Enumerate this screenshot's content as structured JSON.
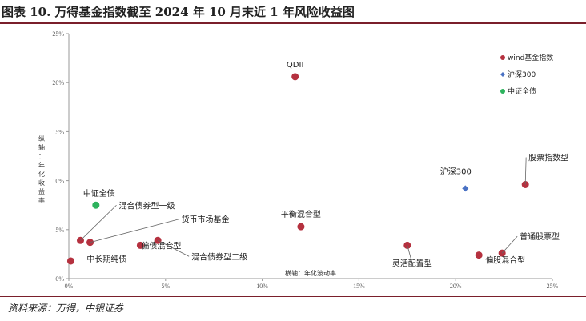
{
  "title": "图表 10. 万得基金指数截至 2024 年 10 月末近 1 年风险收益图",
  "source": "资料来源：万得，中银证券",
  "colors": {
    "wind": "#b5313f",
    "hs300": "#4a72c4",
    "zzqz": "#2db35d",
    "rule": "#7a1f2b"
  },
  "chart_data": {
    "type": "scatter",
    "xlabel": "横轴：年化波动率",
    "ylabel": "纵轴：年化收益率",
    "xlim": [
      0,
      25
    ],
    "ylim": [
      0,
      25
    ],
    "x_ticks": [
      "0%",
      "5%",
      "10%",
      "15%",
      "20%",
      "25%"
    ],
    "y_ticks": [
      "0%",
      "5%",
      "10%",
      "15%",
      "20%",
      "25%"
    ],
    "grid": false,
    "legend_position": "top-right",
    "legend": [
      "wind基金指数",
      "沪深300",
      "中证全债"
    ],
    "points": [
      {
        "label": "QDII",
        "series": "wind",
        "x": 11.7,
        "y": 20.6
      },
      {
        "label": "股票指数型",
        "series": "wind",
        "x": 23.6,
        "y": 9.6
      },
      {
        "label": "平衡混合型",
        "series": "wind",
        "x": 12.0,
        "y": 5.3
      },
      {
        "label": "灵活配置型",
        "series": "wind",
        "x": 17.5,
        "y": 3.4
      },
      {
        "label": "普通股票型",
        "series": "wind",
        "x": 22.4,
        "y": 2.6
      },
      {
        "label": "偏股混合型",
        "series": "wind",
        "x": 21.2,
        "y": 2.4
      },
      {
        "label": "混合债券型一级",
        "series": "wind",
        "x": 0.6,
        "y": 3.9
      },
      {
        "label": "货币市场基金",
        "series": "wind",
        "x": 1.1,
        "y": 3.7
      },
      {
        "label": "偏债混合型",
        "series": "wind",
        "x": 3.7,
        "y": 3.4
      },
      {
        "label": "混合债券型二级",
        "series": "wind",
        "x": 4.6,
        "y": 3.9
      },
      {
        "label": "中长期纯债",
        "series": "wind",
        "x": 0.1,
        "y": 1.8
      },
      {
        "label": "沪深300",
        "series": "hs300",
        "x": 20.5,
        "y": 9.2
      },
      {
        "label": "中证全债",
        "series": "zzqz",
        "x": 1.4,
        "y": 7.5
      }
    ]
  }
}
